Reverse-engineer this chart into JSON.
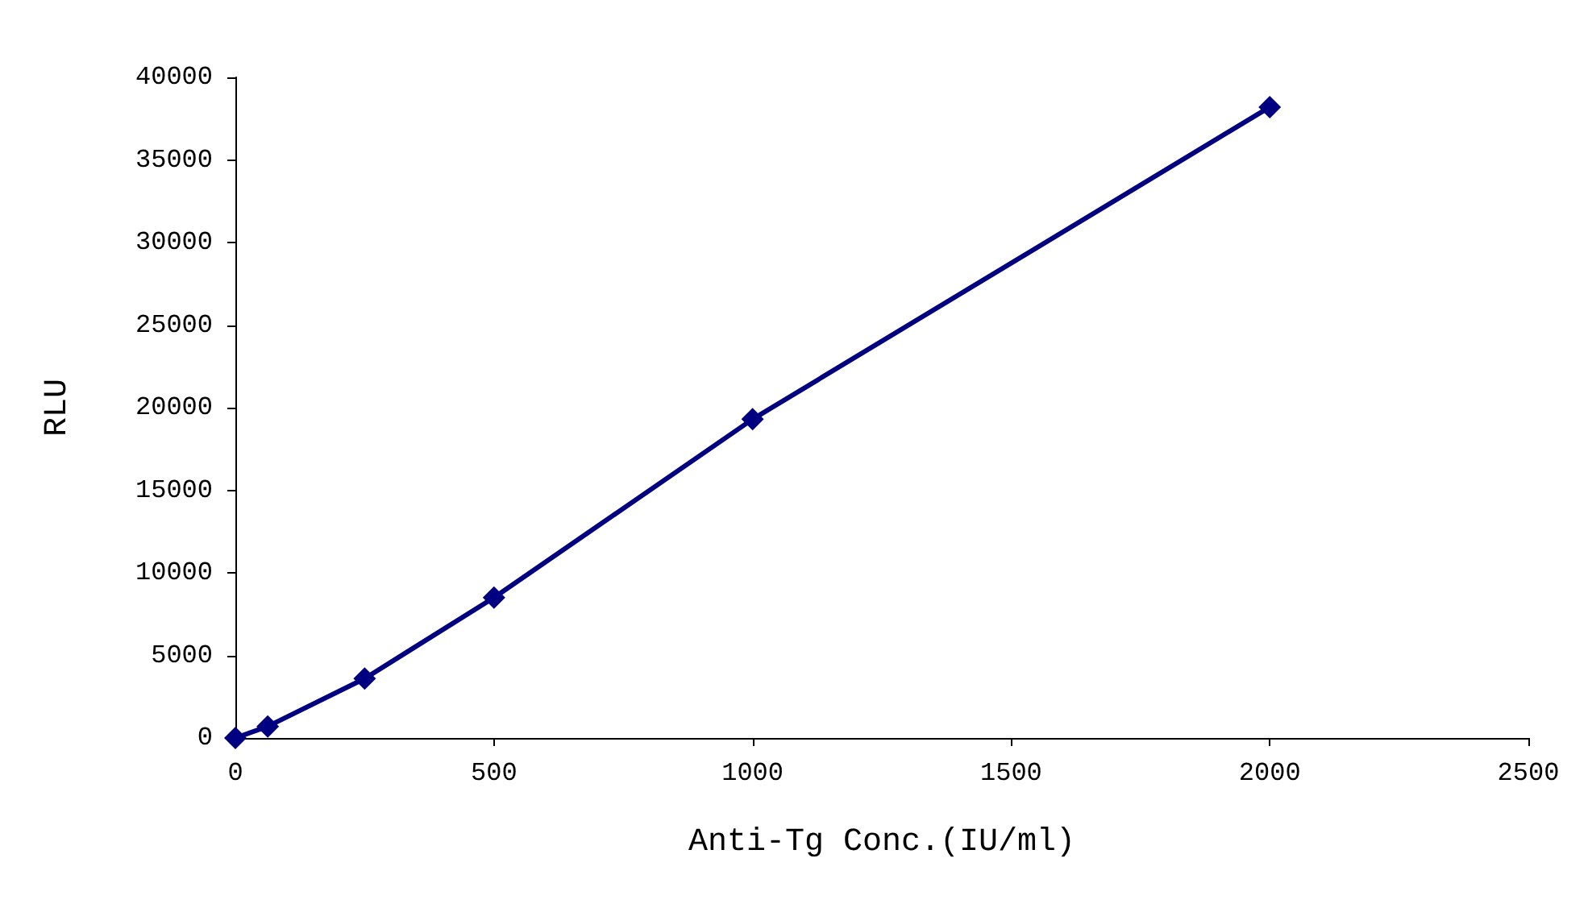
{
  "chart_data": {
    "type": "line",
    "xlabel": "Anti-Tg Conc.(IU/ml)",
    "ylabel": "RLU",
    "x": [
      0,
      62.5,
      250,
      500,
      1000,
      2000
    ],
    "series": [
      {
        "color": "#000080",
        "values": [
          0,
          700,
          3600,
          8500,
          19300,
          38200
        ]
      }
    ],
    "xlim": [
      0,
      2500
    ],
    "xticks": [
      0,
      500,
      1000,
      1500,
      2000,
      2500
    ],
    "ylim": [
      0,
      40000
    ],
    "yticks": [
      0,
      5000,
      10000,
      15000,
      20000,
      25000,
      30000,
      35000,
      40000
    ],
    "grid": false,
    "marker": "diamond",
    "line_style": "solid"
  }
}
